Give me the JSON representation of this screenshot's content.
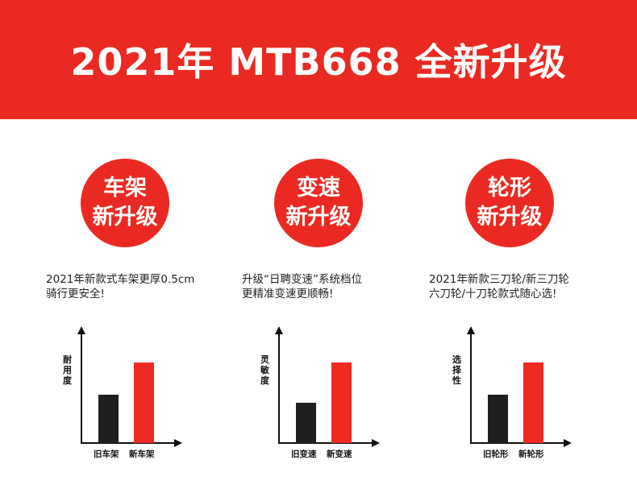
{
  "header": {
    "title": "2021年 MTB668 全新升级"
  },
  "colors": {
    "accent": "#ea2a22",
    "old": "#1f1f1f",
    "new": "#ee2a22"
  },
  "features": [
    {
      "circle_line1": "车架",
      "circle_line2": "新升级",
      "desc_line1": "2021年新款式车架更厚0.5cm",
      "desc_line2": "骑行更安全!",
      "chart": {
        "ylabel": "耐用度",
        "categories": [
          "旧车架",
          "新车架"
        ],
        "values": [
          60,
          100
        ]
      }
    },
    {
      "circle_line1": "变速",
      "circle_line2": "新升级",
      "desc_line1": "升级“日聘变速”系统档位",
      "desc_line2": "更精准变速更顺畅!",
      "chart": {
        "ylabel": "灵敏度",
        "categories": [
          "旧变速",
          "新变速"
        ],
        "values": [
          50,
          100
        ]
      }
    },
    {
      "circle_line1": "轮形",
      "circle_line2": "新升级",
      "desc_line1": "2021年新款三刀轮/新三刀轮",
      "desc_line2": "六刀轮/十刀轮款式随心选!",
      "chart": {
        "ylabel": "选择性",
        "categories": [
          "旧轮形",
          "新轮形"
        ],
        "values": [
          60,
          100
        ]
      }
    }
  ]
}
